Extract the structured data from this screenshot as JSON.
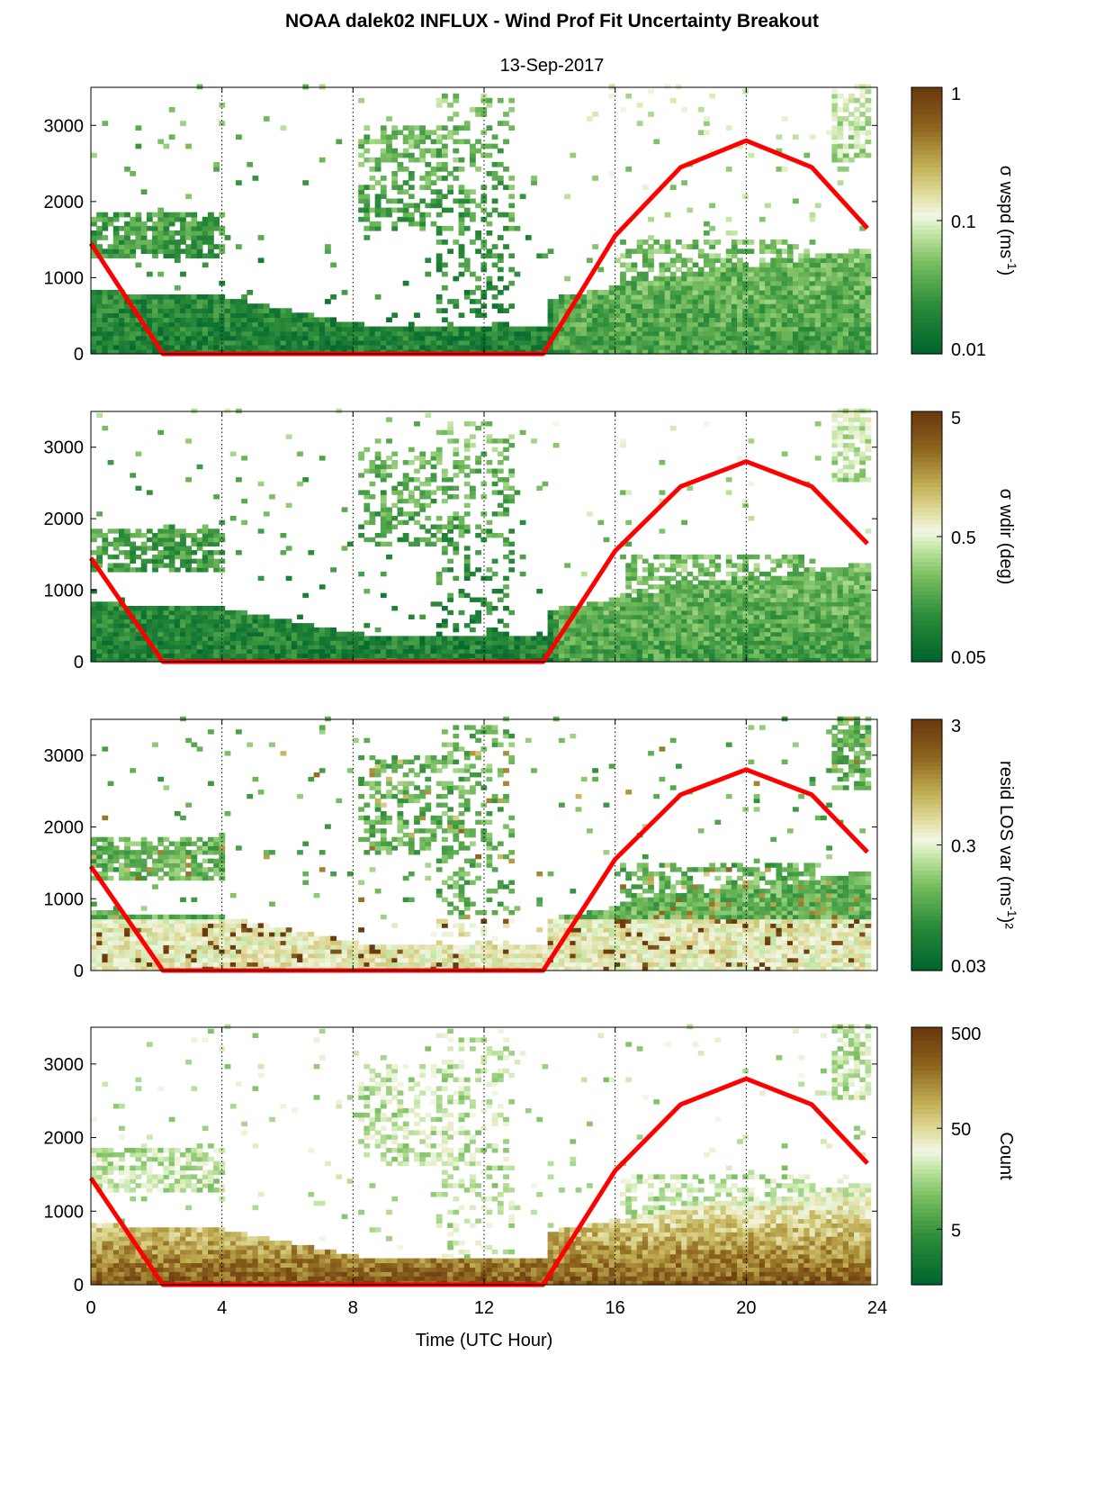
{
  "figure": {
    "title": "NOAA dalek02 INFLUX - Wind Prof Fit Uncertainty Breakout",
    "subtitle": "13-Sep-2017",
    "xlabel": "Time (UTC Hour)"
  },
  "colors": {
    "sun_curve": "#ff0000",
    "colormap_low": "#00652e",
    "colormap_mid": "#f2f7e6",
    "colormap_high": "#6b3a0e"
  },
  "chart_data": [
    {
      "type": "heatmap",
      "name": "wspd",
      "xlim": [
        0,
        24
      ],
      "ylim": [
        0,
        3500
      ],
      "xticks": [
        0,
        4,
        8,
        12,
        16,
        20,
        24
      ],
      "yticks": [
        0,
        1000,
        2000,
        3000
      ],
      "grid_x": [
        4,
        8,
        12,
        16,
        20,
        24
      ],
      "colorbar": {
        "scale": "log",
        "label": "σ wspd (ms",
        "label_sup": "-1",
        "label_tail": ")",
        "ticks": [
          "1",
          "0.1",
          "0.01"
        ]
      },
      "sun_curve": {
        "x": [
          0,
          2.2,
          13.8,
          16,
          18,
          20,
          22,
          23.7
        ],
        "y": [
          1450,
          0,
          0,
          1550,
          2450,
          2800,
          2450,
          1650
        ]
      }
    },
    {
      "type": "heatmap",
      "name": "wdir",
      "xlim": [
        0,
        24
      ],
      "ylim": [
        0,
        3500
      ],
      "xticks": [
        0,
        4,
        8,
        12,
        16,
        20,
        24
      ],
      "yticks": [
        0,
        1000,
        2000,
        3000
      ],
      "grid_x": [
        4,
        8,
        12,
        16,
        20,
        24
      ],
      "colorbar": {
        "scale": "log",
        "label": "σ wdir (deg)",
        "label_sup": "",
        "label_tail": "",
        "ticks": [
          "5",
          "0.5",
          "0.05"
        ]
      },
      "sun_curve": {
        "x": [
          0,
          2.2,
          13.8,
          16,
          18,
          20,
          22,
          23.7
        ],
        "y": [
          1450,
          0,
          0,
          1550,
          2450,
          2800,
          2450,
          1650
        ]
      }
    },
    {
      "type": "heatmap",
      "name": "resid",
      "xlim": [
        0,
        24
      ],
      "ylim": [
        0,
        3500
      ],
      "xticks": [
        0,
        4,
        8,
        12,
        16,
        20,
        24
      ],
      "yticks": [
        0,
        1000,
        2000,
        3000
      ],
      "grid_x": [
        4,
        8,
        12,
        16,
        20,
        24
      ],
      "colorbar": {
        "scale": "log",
        "label": "resid LOS var (ms",
        "label_sup": "-1",
        "label_tail": ")²",
        "ticks": [
          "3",
          "0.3",
          "0.03"
        ]
      },
      "sun_curve": {
        "x": [
          0,
          2.2,
          13.8,
          16,
          18,
          20,
          22,
          23.7
        ],
        "y": [
          1450,
          0,
          0,
          1550,
          2450,
          2800,
          2450,
          1650
        ]
      }
    },
    {
      "type": "heatmap",
      "name": "count",
      "xlim": [
        0,
        24
      ],
      "ylim": [
        0,
        3500
      ],
      "xticks": [
        0,
        4,
        8,
        12,
        16,
        20,
        24
      ],
      "yticks": [
        0,
        1000,
        2000,
        3000
      ],
      "grid_x": [
        4,
        8,
        12,
        16,
        20,
        24
      ],
      "colorbar": {
        "scale": "log",
        "label": "Count",
        "label_sup": "",
        "label_tail": "",
        "ticks": [
          "500",
          "50",
          "5"
        ]
      },
      "sun_curve": {
        "x": [
          0,
          2.2,
          13.8,
          16,
          18,
          20,
          22,
          23.7
        ],
        "y": [
          1450,
          0,
          0,
          1550,
          2450,
          2800,
          2450,
          1650
        ]
      }
    }
  ]
}
